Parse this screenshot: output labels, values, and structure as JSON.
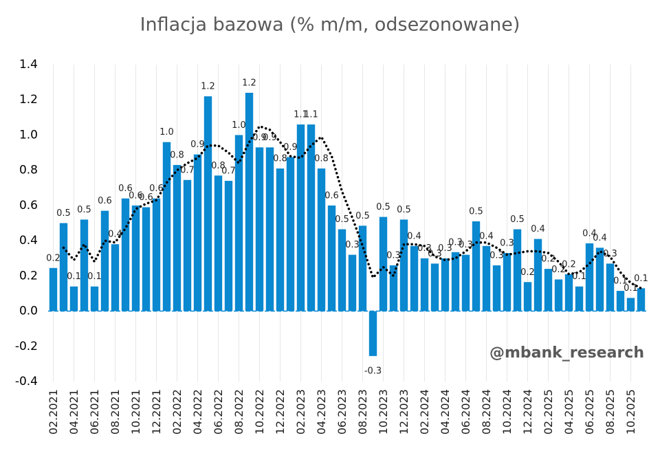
{
  "chart_data": {
    "type": "bar",
    "title": "Inflacja bazowa (% m/m, odsezonowane)",
    "annotation": "@mbank_research",
    "categories": [
      "02.2021",
      null,
      "04.2021",
      null,
      "06.2021",
      null,
      "08.2021",
      null,
      "10.2021",
      null,
      "12.2021",
      null,
      "02.2022",
      null,
      "04.2022",
      null,
      "06.2022",
      null,
      "08.2022",
      null,
      "10.2022",
      null,
      "12.2022",
      null,
      "02.2023",
      null,
      "04.2023",
      null,
      "06.2023",
      null,
      "08.2023",
      null,
      "10.2023",
      null,
      "12.2023",
      null,
      "02.2024",
      null,
      "04.2024",
      null,
      "06.2024",
      null,
      "08.2024",
      null,
      "10.2024",
      null,
      "12.2024",
      null,
      "02.2025",
      null,
      "04.2025",
      null,
      "06.2025",
      null,
      "08.2025",
      null,
      "10.2025",
      null
    ],
    "series": [
      {
        "type": "bar",
        "color": "#0a88d0",
        "values": [
          0.245,
          0.5,
          0.14,
          0.52,
          0.14,
          0.57,
          0.38,
          0.64,
          0.6,
          0.59,
          0.64,
          0.96,
          0.83,
          0.745,
          0.89,
          1.22,
          0.77,
          0.74,
          1.0,
          1.24,
          0.93,
          0.93,
          0.81,
          0.875,
          1.06,
          1.06,
          0.81,
          0.6,
          0.465,
          0.32,
          0.485,
          -0.255,
          0.535,
          0.26,
          0.52,
          0.37,
          0.3,
          0.27,
          0.3,
          0.335,
          0.32,
          0.51,
          0.37,
          0.26,
          0.33,
          0.465,
          0.165,
          0.41,
          0.24,
          0.18,
          0.21,
          0.14,
          0.385,
          0.36,
          0.27,
          0.115,
          0.075,
          0.13
        ],
        "value_labels": [
          "0.2",
          "0.5",
          "0.1",
          "0.5",
          "0.1",
          "0.6",
          "0.4",
          "0.6",
          "0.6",
          "0.6",
          "0.6",
          "1.0",
          "0.8",
          "0.7",
          "0.9",
          "1.2",
          "0.8",
          "0.7",
          "1.0",
          "1.2",
          "0.9",
          "0.9",
          "0.8",
          "0.9",
          "1.1",
          "1.1",
          "0.8",
          "0.6",
          "0.5",
          "0.3",
          "0.5",
          "-0.3",
          "0.5",
          "0.3",
          "0.5",
          "0.4",
          "0.3",
          "0.3",
          "0.3",
          "0.3",
          "0.3",
          "0.5",
          "0.4",
          "0.3",
          "0.3",
          "0.5",
          "0.2",
          "0.4",
          "0.2",
          "0.2",
          "0.2",
          "0.1",
          "0.4",
          "0.4",
          "0.3",
          "0.1",
          "0.1",
          "0.1"
        ]
      },
      {
        "type": "line",
        "color": "#000000",
        "dotted": true,
        "values": [
          null,
          0.36,
          0.29,
          0.38,
          0.28,
          0.4,
          0.39,
          0.47,
          0.58,
          0.61,
          0.63,
          0.73,
          0.8,
          0.84,
          0.87,
          0.94,
          0.94,
          0.9,
          0.84,
          0.96,
          1.05,
          1.03,
          0.96,
          0.88,
          0.87,
          0.94,
          0.99,
          0.88,
          0.68,
          0.53,
          0.37,
          0.19,
          0.25,
          0.2,
          0.38,
          0.38,
          0.37,
          0.31,
          0.29,
          0.3,
          0.34,
          0.39,
          0.39,
          0.36,
          0.32,
          0.33,
          0.34,
          0.34,
          0.33,
          0.28,
          0.21,
          0.22,
          0.27,
          0.34,
          0.31,
          0.22,
          0.16,
          0.13
        ]
      }
    ],
    "ylim": [
      -0.4,
      1.4
    ],
    "yticks": [
      -0.4,
      -0.2,
      {
        "value": 0,
        "label": "0.0"
      },
      0.2,
      0.4,
      0.6,
      0.8,
      {
        "value": 1,
        "label": "1.0"
      },
      1.2,
      1.4
    ],
    "grid": "x"
  }
}
